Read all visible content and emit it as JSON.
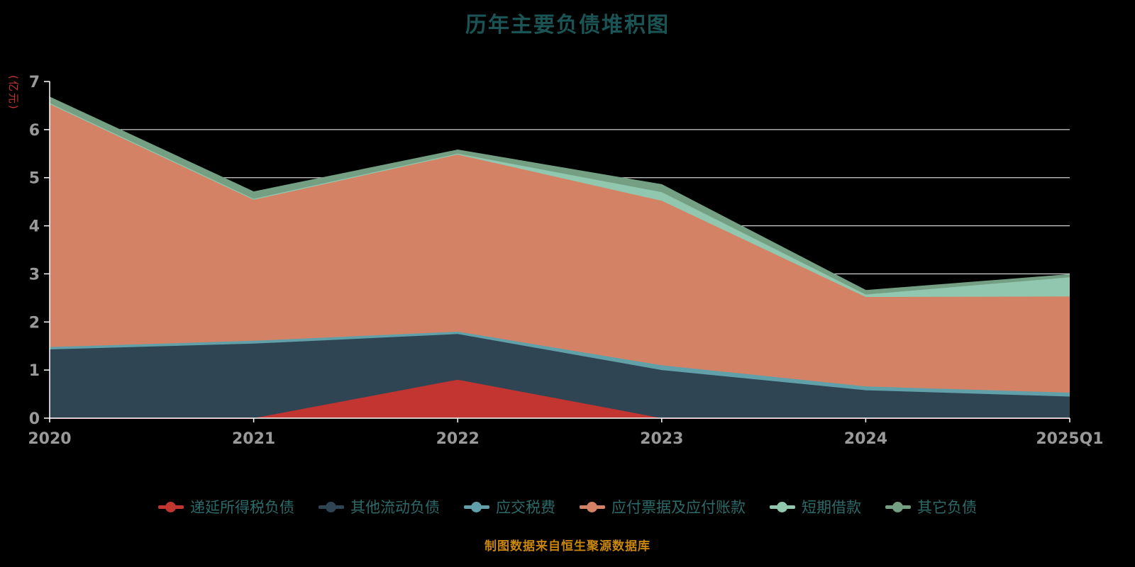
{
  "chart_data": {
    "type": "area",
    "stacked": true,
    "title": "历年主要负债堆积图",
    "ylabel": "(亿元)",
    "xlabel": "",
    "categories": [
      "2020",
      "2021",
      "2022",
      "2023",
      "2024",
      "2025Q1"
    ],
    "series": [
      {
        "name": "递延所得税负债",
        "color": "#c23531",
        "values": [
          0,
          0,
          0.8,
          0,
          0,
          0
        ]
      },
      {
        "name": "其他流动负债",
        "color": "#2f4554",
        "values": [
          1.43,
          1.55,
          0.95,
          1.0,
          0.58,
          0.45
        ]
      },
      {
        "name": "应交税费",
        "color": "#61a0a8",
        "values": [
          0.05,
          0.06,
          0.05,
          0.1,
          0.08,
          0.08
        ]
      },
      {
        "name": "应付票据及应付账款",
        "color": "#d48265",
        "values": [
          5.05,
          2.93,
          3.68,
          3.42,
          1.86,
          2.0
        ]
      },
      {
        "name": "短期借款",
        "color": "#91c7ae",
        "values": [
          0.02,
          0.02,
          0.02,
          0.18,
          0.05,
          0.4
        ]
      },
      {
        "name": "其它负债",
        "color": "#749f83",
        "values": [
          0.12,
          0.14,
          0.07,
          0.15,
          0.08,
          0.05
        ]
      }
    ],
    "ylim": [
      0,
      7
    ],
    "yticks": [
      0,
      1,
      2,
      3,
      4,
      5,
      6,
      7
    ],
    "grid": true,
    "legend_position": "bottom"
  },
  "footer": {
    "text": "制图数据来自恒生聚源数据库"
  },
  "style": {
    "background": "#000000",
    "grid_color": "#ffffff",
    "axis_color": "#ffffff",
    "tick_label_color": "#9a9a9a",
    "title_color": "#1b5454",
    "legend_text_color": "#2d6a6a",
    "unit_color": "#c23531",
    "footer_color": "#c8860b"
  }
}
